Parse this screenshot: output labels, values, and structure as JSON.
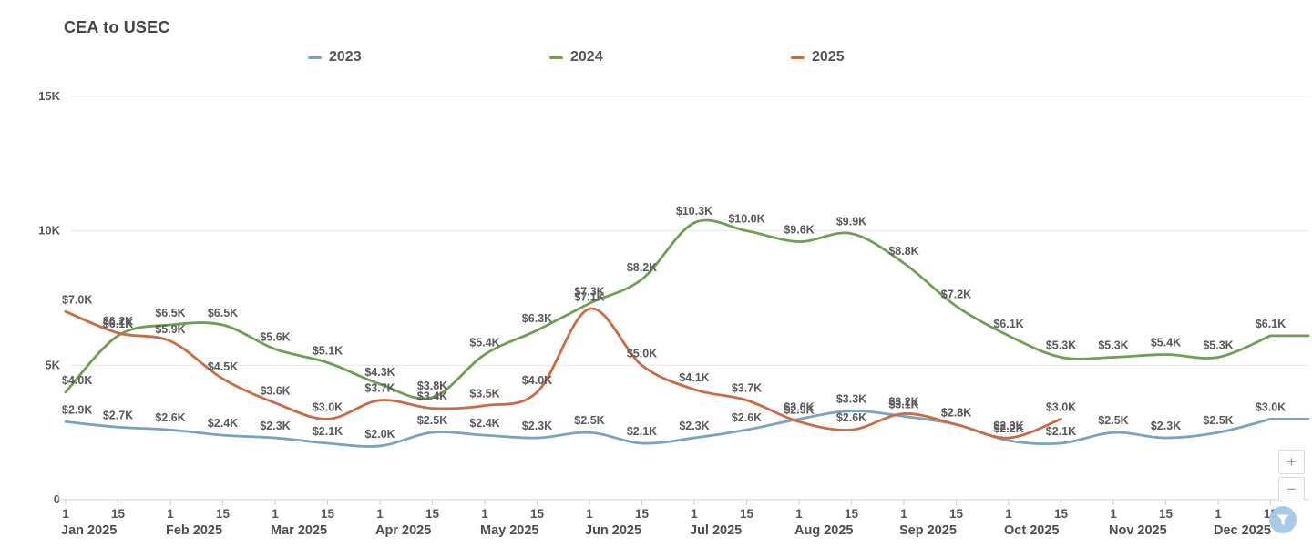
{
  "title": "CEA to USEC",
  "legend": [
    {
      "label": "2023",
      "color": "#76a5bf"
    },
    {
      "label": "2024",
      "color": "#6f9f52"
    },
    {
      "label": "2025",
      "color": "#cc6a41"
    }
  ],
  "controls": {
    "zoom_in": "+",
    "zoom_out": "−",
    "filter_icon": "funnel-icon"
  },
  "chart_data": {
    "type": "line",
    "title": "CEA to USEC",
    "xlabel": "",
    "ylabel": "",
    "ylim": [
      0,
      15000
    ],
    "grid": "horizontal",
    "legend_position": "top",
    "yticks": [
      {
        "value": 0,
        "label": "0"
      },
      {
        "value": 5,
        "label": "5K"
      },
      {
        "value": 10,
        "label": "10K"
      },
      {
        "value": 15,
        "label": "15K"
      }
    ],
    "months": [
      "Jan 2025",
      "Feb 2025",
      "Mar 2025",
      "Apr 2025",
      "May 2025",
      "Jun 2025",
      "Jul 2025",
      "Aug 2025",
      "Sep 2025",
      "Oct 2025",
      "Nov 2025",
      "Dec 2025"
    ],
    "day_ticks": [
      "1",
      "15"
    ],
    "label_format": "$%.1fK",
    "series": [
      {
        "name": "2023",
        "color": "#76a5bf",
        "values_k": [
          2.9,
          2.7,
          2.6,
          2.4,
          2.3,
          2.1,
          2.0,
          2.5,
          2.4,
          2.3,
          2.5,
          2.1,
          2.3,
          2.6,
          3.0,
          3.3,
          3.1,
          2.8,
          2.2,
          2.1,
          2.5,
          2.3,
          2.5,
          3.0
        ]
      },
      {
        "name": "2024",
        "color": "#6f9f52",
        "values_k": [
          4.0,
          6.1,
          6.5,
          6.5,
          5.6,
          5.1,
          4.3,
          3.8,
          5.4,
          6.3,
          7.3,
          8.2,
          10.3,
          10.0,
          9.6,
          9.9,
          8.8,
          7.2,
          6.1,
          5.3,
          5.3,
          5.4,
          5.3,
          6.1
        ]
      },
      {
        "name": "2025",
        "color": "#cc6a41",
        "values_k": [
          7.0,
          6.2,
          5.9,
          4.5,
          3.6,
          3.0,
          3.7,
          3.4,
          3.5,
          4.0,
          7.1,
          5.0,
          4.1,
          3.7,
          2.9,
          2.6,
          3.2,
          2.8,
          2.3,
          3.0
        ]
      }
    ]
  }
}
